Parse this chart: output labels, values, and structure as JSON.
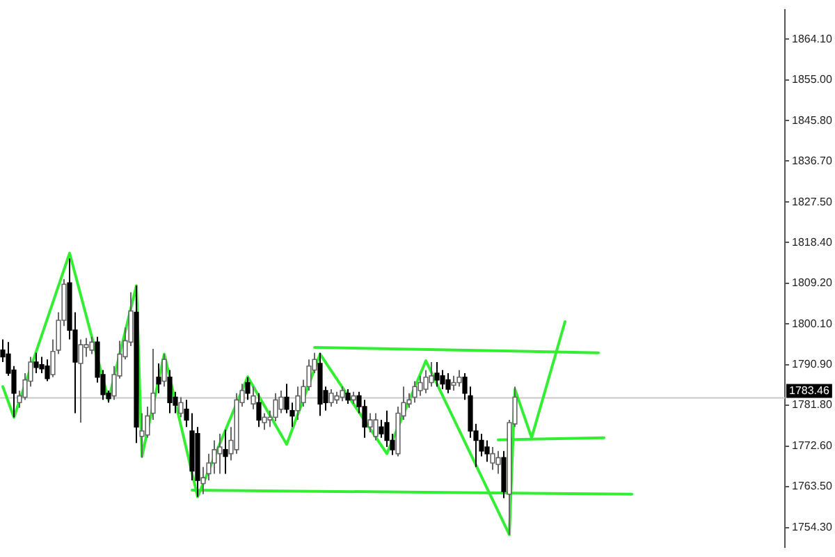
{
  "chart_data": {
    "type": "candlestick",
    "colors": [
      "#000000",
      "#000000",
      "#000000",
      "#ffffff",
      "#ffffff",
      "#ffffff",
      "#000000",
      "#000000",
      "#000000",
      "#ffffff",
      "#ffffff",
      "#ffffff",
      "#000000",
      "#000000",
      "#ffffff",
      "#ffffff",
      "#ffffff",
      "#000000",
      "#000000",
      "#000000",
      "#ffffff",
      "#ffffff",
      "#ffffff",
      "#ffffff",
      "#000000",
      "#ffffff",
      "#ffffff",
      "#ffffff",
      "#000000",
      "#ffffff",
      "#000000",
      "#000000",
      "#ffffff",
      "#000000",
      "#000000",
      "#000000",
      "#ffffff",
      "#ffffff",
      "#ffffff",
      "#ffffff",
      "#000000",
      "#ffffff",
      "#ffffff",
      "#ffffff",
      "#000000",
      "#ffffff",
      "#000000",
      "#ffffff",
      "#ffffff",
      "#ffffff",
      "#ffffff",
      "#000000",
      "#000000",
      "#ffffff",
      "#ffffff",
      "#ffffff",
      "#ffffff",
      "#000000",
      "#000000",
      "#ffffff",
      "#ffffff",
      "#ffffff",
      "#000000",
      "#ffffff",
      "#000000",
      "#000000",
      "#ffffff",
      "#ffffff",
      "#000000",
      "#000000",
      "#000000",
      "#ffffff",
      "#ffffff",
      "#ffffff",
      "#ffffff",
      "#ffffff",
      "#ffffff",
      "#ffffff",
      "#000000",
      "#000000",
      "#000000",
      "#ffffff",
      "#ffffff",
      "#000000",
      "#000000",
      "#000000",
      "#000000",
      "#000000",
      "#ffffff",
      "#ffffff",
      "#000000",
      "#ffffff",
      "#ffffff",
      null,
      null,
      null,
      null,
      null,
      null,
      null,
      null,
      null,
      null,
      null,
      null,
      null,
      null,
      null,
      null,
      null,
      null,
      null,
      null,
      null,
      null,
      null,
      null,
      null,
      null,
      null,
      null,
      null,
      null,
      null,
      null,
      null,
      null,
      null,
      null,
      null,
      null,
      null,
      null,
      null,
      null,
      null,
      null,
      null,
      null,
      null,
      null
    ],
    "categories": [
      null,
      null,
      null,
      null,
      null,
      null,
      null,
      null,
      null,
      null,
      null,
      null,
      null,
      null,
      null,
      null,
      null,
      null,
      null,
      null,
      null,
      null,
      null,
      null,
      null,
      null,
      null,
      null,
      null,
      null,
      null,
      null,
      null,
      null,
      null,
      null,
      null,
      null,
      null,
      null,
      null,
      null,
      null,
      null,
      null,
      null,
      null,
      null,
      null,
      null,
      null,
      null,
      null,
      null,
      null,
      null,
      null,
      null,
      null,
      null,
      null,
      null,
      null,
      null,
      null,
      null,
      null,
      null,
      null,
      null,
      null,
      null,
      null,
      null,
      null,
      null,
      null,
      null,
      null,
      null,
      null,
      null,
      null,
      null,
      null,
      null,
      null,
      null,
      null,
      null,
      null,
      null,
      null,
      null,
      null,
      null,
      null,
      null,
      null,
      null,
      null,
      null,
      null,
      null,
      null,
      null,
      null,
      null,
      null,
      null,
      null,
      null,
      null,
      null,
      null,
      null,
      null,
      null,
      null,
      null,
      null,
      null,
      null,
      null,
      null,
      null,
      null,
      null,
      null,
      null,
      null,
      null,
      null,
      null,
      null,
      null,
      null,
      null,
      null,
      null,
      null
    ],
    "series": [
      {
        "type": "line",
        "color": "#33ee33",
        "values": [
          1786.0,
          null,
          1779.1,
          null,
          null,
          null,
          null,
          null,
          null,
          null,
          null,
          null,
          1816.0,
          null,
          null,
          null,
          null,
          null,
          null,
          1783.0,
          null,
          null,
          null,
          null,
          1808.7,
          1770.3,
          null,
          null,
          null,
          1793.3,
          null,
          null,
          null,
          null,
          null,
          1761.2,
          null,
          null,
          null,
          null,
          null,
          null,
          null,
          null,
          1788.2,
          null,
          null,
          null,
          null,
          null,
          null,
          1773.0,
          null,
          null,
          null,
          null,
          null,
          1793.3,
          null,
          null,
          null,
          null,
          null,
          null,
          null,
          null,
          null,
          null,
          null,
          1770.9,
          null,
          null,
          null,
          null,
          null,
          null,
          1791.8,
          null,
          null,
          null,
          null,
          null,
          null,
          null,
          null,
          null,
          null,
          null,
          null,
          null,
          null,
          1752.7,
          1785.4,
          null,
          null,
          1774.5,
          null,
          null,
          null,
          null,
          null,
          1800.6,
          null,
          null,
          null,
          null,
          null,
          null,
          null,
          null,
          null,
          null,
          null,
          null,
          null,
          null,
          null,
          null,
          null,
          null,
          null,
          null,
          null,
          null,
          null,
          null,
          null,
          null,
          null,
          null,
          null,
          null,
          null,
          null,
          null,
          null,
          null,
          null,
          null,
          null,
          null
        ]
      },
      {
        "type": "line",
        "color": "#33ee33",
        "values": [
          null,
          null,
          null,
          null,
          null,
          null,
          null,
          null,
          null,
          null,
          null,
          null,
          null,
          null,
          null,
          null,
          null,
          null,
          null,
          null,
          null,
          null,
          null,
          null,
          null,
          null,
          null,
          null,
          null,
          null,
          null,
          null,
          null,
          null,
          null,
          null,
          null,
          null,
          null,
          null,
          null,
          null,
          null,
          null,
          null,
          null,
          null,
          null,
          null,
          null,
          null,
          null,
          null,
          null,
          null,
          null,
          1794.8,
          null,
          null,
          null,
          null,
          null,
          null,
          null,
          null,
          null,
          null,
          null,
          null,
          null,
          null,
          null,
          null,
          null,
          null,
          null,
          null,
          null,
          null,
          null,
          null,
          null,
          null,
          null,
          null,
          null,
          null,
          null,
          null,
          null,
          null,
          null,
          null,
          null,
          null,
          null,
          null,
          null,
          null,
          null,
          null,
          null,
          null,
          null,
          null,
          null,
          null,
          1793.6,
          null,
          null,
          null,
          null,
          null,
          null,
          null,
          null,
          null,
          null,
          null,
          null,
          null,
          null,
          null,
          null,
          null,
          null,
          null,
          null,
          null,
          null,
          null,
          null,
          null,
          null,
          null,
          null,
          null,
          null,
          null,
          null,
          null
        ]
      },
      {
        "type": "line",
        "color": "#33ee33",
        "values": [
          null,
          null,
          null,
          null,
          null,
          null,
          null,
          null,
          null,
          null,
          null,
          null,
          null,
          null,
          null,
          null,
          null,
          null,
          null,
          null,
          null,
          null,
          null,
          null,
          null,
          null,
          null,
          null,
          null,
          null,
          null,
          null,
          null,
          null,
          1762.7,
          null,
          null,
          null,
          null,
          null,
          null,
          null,
          null,
          null,
          null,
          null,
          null,
          null,
          null,
          null,
          null,
          null,
          null,
          null,
          null,
          null,
          null,
          null,
          null,
          null,
          null,
          null,
          null,
          null,
          null,
          null,
          null,
          null,
          null,
          null,
          null,
          null,
          null,
          null,
          null,
          null,
          null,
          null,
          null,
          null,
          null,
          null,
          null,
          null,
          null,
          null,
          null,
          null,
          null,
          null,
          null,
          null,
          null,
          null,
          null,
          null,
          null,
          null,
          null,
          null,
          null,
          null,
          null,
          null,
          null,
          null,
          null,
          null,
          null,
          null,
          null,
          null,
          null,
          1761.8,
          null,
          null,
          null,
          null,
          null,
          null,
          null,
          null,
          null,
          null,
          null,
          null,
          null,
          null,
          null,
          null,
          null,
          null,
          null,
          null,
          null,
          null,
          null,
          null,
          null,
          null,
          null
        ]
      },
      {
        "type": "line",
        "color": "#33ee33",
        "values": [
          null,
          null,
          null,
          null,
          null,
          null,
          null,
          null,
          null,
          null,
          null,
          null,
          null,
          null,
          null,
          null,
          null,
          null,
          null,
          null,
          null,
          null,
          null,
          null,
          null,
          null,
          null,
          null,
          null,
          null,
          null,
          null,
          null,
          null,
          null,
          null,
          null,
          null,
          null,
          null,
          null,
          null,
          null,
          null,
          null,
          null,
          null,
          null,
          null,
          null,
          null,
          null,
          null,
          null,
          null,
          null,
          null,
          null,
          null,
          null,
          null,
          null,
          null,
          null,
          null,
          null,
          null,
          null,
          null,
          null,
          null,
          null,
          null,
          null,
          null,
          null,
          null,
          null,
          null,
          null,
          null,
          null,
          null,
          null,
          null,
          null,
          null,
          null,
          null,
          1774.0,
          null,
          null,
          null,
          null,
          null,
          null,
          null,
          null,
          null,
          null,
          null,
          null,
          null,
          null,
          null,
          null,
          null,
          null,
          1774.5,
          null,
          null,
          null,
          null,
          null,
          null,
          null,
          null,
          null,
          null,
          null,
          null,
          null,
          null,
          null,
          null,
          null,
          null,
          null,
          null,
          null,
          null,
          null,
          null,
          null,
          null,
          null,
          null,
          null,
          null,
          null,
          null
        ]
      }
    ],
    "ohlc": [
      [
        1794.2,
        1796.6,
        1791.5,
        1792.7
      ],
      [
        1793.3,
        1796.0,
        1788.4,
        1789.0
      ],
      [
        1789.7,
        1790.6,
        1779.1,
        1784.5
      ],
      [
        1782.4,
        1785.1,
        1781.2,
        1783.9
      ],
      [
        1783.6,
        1789.0,
        1783.0,
        1787.5
      ],
      [
        1787.2,
        1792.7,
        1786.0,
        1791.5
      ],
      [
        1791.5,
        1793.6,
        1789.0,
        1790.3
      ],
      [
        1790.9,
        1792.7,
        1789.0,
        1790.0
      ],
      [
        1790.6,
        1792.1,
        1787.2,
        1787.8
      ],
      [
        1788.7,
        1796.6,
        1788.1,
        1793.9
      ],
      [
        1794.2,
        1802.7,
        1793.3,
        1800.9
      ],
      [
        1800.9,
        1810.2,
        1799.6,
        1809.0
      ],
      [
        1809.3,
        1814.8,
        1796.6,
        1798.7
      ],
      [
        1798.7,
        1802.7,
        1780.0,
        1791.5
      ],
      [
        1791.2,
        1796.6,
        1777.9,
        1795.4
      ],
      [
        1794.8,
        1796.9,
        1792.7,
        1795.4
      ],
      [
        1794.2,
        1797.2,
        1793.3,
        1796.0
      ],
      [
        1796.0,
        1797.2,
        1786.9,
        1788.1
      ],
      [
        1788.7,
        1789.7,
        1783.0,
        1784.2
      ],
      [
        1784.5,
        1785.1,
        1782.4,
        1783.3
      ],
      [
        1783.9,
        1790.6,
        1783.0,
        1788.7
      ],
      [
        1788.4,
        1796.3,
        1787.8,
        1793.3
      ],
      [
        1792.7,
        1799.3,
        1792.1,
        1796.3
      ],
      [
        1796.0,
        1807.2,
        1795.1,
        1803.0
      ],
      [
        1802.7,
        1808.7,
        1773.3,
        1776.9
      ],
      [
        1774.8,
        1780.0,
        1770.0,
        1776.0
      ],
      [
        1775.1,
        1781.5,
        1774.5,
        1779.4
      ],
      [
        1780.0,
        1794.5,
        1778.5,
        1784.5
      ],
      [
        1788.1,
        1791.2,
        1784.5,
        1786.6
      ],
      [
        1787.2,
        1793.3,
        1786.0,
        1792.1
      ],
      [
        1788.1,
        1789.7,
        1780.0,
        1782.4
      ],
      [
        1783.6,
        1784.8,
        1780.0,
        1781.8
      ],
      [
        1780.0,
        1783.6,
        1779.1,
        1782.4
      ],
      [
        1780.9,
        1783.0,
        1776.9,
        1778.5
      ],
      [
        1776.0,
        1780.0,
        1764.9,
        1767.0
      ],
      [
        1775.4,
        1776.9,
        1761.2,
        1764.9
      ],
      [
        1764.2,
        1767.9,
        1761.8,
        1765.5
      ],
      [
        1766.4,
        1770.9,
        1764.9,
        1768.8
      ],
      [
        1768.8,
        1773.9,
        1766.4,
        1771.8
      ],
      [
        1770.9,
        1775.4,
        1766.4,
        1772.4
      ],
      [
        1771.8,
        1776.3,
        1766.4,
        1770.3
      ],
      [
        1770.9,
        1776.9,
        1769.4,
        1773.9
      ],
      [
        1771.8,
        1784.5,
        1770.9,
        1783.0
      ],
      [
        1782.4,
        1786.6,
        1781.5,
        1785.1
      ],
      [
        1786.9,
        1788.1,
        1783.0,
        1784.5
      ],
      [
        1782.1,
        1786.0,
        1780.9,
        1783.9
      ],
      [
        1782.4,
        1784.5,
        1776.9,
        1778.5
      ],
      [
        1777.9,
        1780.0,
        1776.3,
        1779.1
      ],
      [
        1778.5,
        1780.6,
        1776.9,
        1779.1
      ],
      [
        1779.1,
        1784.5,
        1778.2,
        1783.0
      ],
      [
        1780.9,
        1785.1,
        1780.0,
        1783.6
      ],
      [
        1783.6,
        1786.6,
        1780.0,
        1780.9
      ],
      [
        1780.6,
        1782.4,
        1776.9,
        1779.4
      ],
      [
        1780.6,
        1786.0,
        1778.5,
        1783.9
      ],
      [
        1782.4,
        1787.5,
        1781.5,
        1786.0
      ],
      [
        1786.0,
        1792.1,
        1785.1,
        1790.6
      ],
      [
        1789.7,
        1793.6,
        1789.0,
        1792.1
      ],
      [
        1791.2,
        1793.6,
        1779.4,
        1782.1
      ],
      [
        1785.1,
        1786.0,
        1780.6,
        1782.4
      ],
      [
        1782.4,
        1785.4,
        1781.5,
        1784.5
      ],
      [
        1783.0,
        1784.8,
        1782.1,
        1783.9
      ],
      [
        1783.6,
        1786.0,
        1782.7,
        1785.1
      ],
      [
        1784.5,
        1785.4,
        1782.1,
        1783.0
      ],
      [
        1783.0,
        1784.8,
        1782.1,
        1783.9
      ],
      [
        1783.9,
        1784.8,
        1780.0,
        1781.5
      ],
      [
        1781.5,
        1783.0,
        1774.5,
        1776.9
      ],
      [
        1776.9,
        1780.0,
        1775.7,
        1778.5
      ],
      [
        1774.8,
        1780.0,
        1773.9,
        1778.5
      ],
      [
        1776.9,
        1778.5,
        1774.5,
        1775.4
      ],
      [
        1777.9,
        1780.6,
        1772.4,
        1773.9
      ],
      [
        1773.9,
        1775.4,
        1770.6,
        1771.8
      ],
      [
        1770.9,
        1781.5,
        1770.3,
        1780.0
      ],
      [
        1779.4,
        1786.0,
        1778.5,
        1782.4
      ],
      [
        1782.1,
        1784.5,
        1781.2,
        1783.0
      ],
      [
        1783.6,
        1787.2,
        1782.4,
        1786.0
      ],
      [
        1785.1,
        1788.4,
        1783.9,
        1786.9
      ],
      [
        1785.4,
        1789.7,
        1784.5,
        1788.1
      ],
      [
        1786.9,
        1791.5,
        1786.0,
        1788.4
      ],
      [
        1789.0,
        1791.5,
        1786.0,
        1787.5
      ],
      [
        1788.4,
        1789.7,
        1785.4,
        1786.6
      ],
      [
        1787.5,
        1789.0,
        1784.5,
        1785.4
      ],
      [
        1786.3,
        1788.4,
        1785.1,
        1786.9
      ],
      [
        1786.9,
        1789.7,
        1786.0,
        1788.1
      ],
      [
        1788.1,
        1789.0,
        1783.0,
        1784.5
      ],
      [
        1783.9,
        1786.0,
        1774.5,
        1776.0
      ],
      [
        1776.0,
        1777.6,
        1767.9,
        1773.9
      ],
      [
        1773.9,
        1775.4,
        1770.3,
        1771.5
      ],
      [
        1772.4,
        1773.9,
        1769.1,
        1770.9
      ],
      [
        1768.8,
        1772.4,
        1767.3,
        1770.9
      ],
      [
        1768.5,
        1771.5,
        1766.4,
        1770.0
      ],
      [
        1770.0,
        1771.5,
        1760.9,
        1762.4
      ],
      [
        1761.8,
        1778.5,
        1752.7,
        1777.9
      ],
      [
        1777.6,
        1786.0,
        1776.9,
        1783.6
      ],
      null,
      null,
      null,
      null,
      null,
      null,
      null,
      null,
      null,
      null,
      null,
      null,
      null,
      null,
      null,
      null,
      null,
      null,
      null,
      null,
      null,
      null,
      null,
      null,
      null,
      null,
      null,
      null,
      null,
      null,
      null,
      null,
      null,
      null,
      null,
      null,
      null,
      null,
      null,
      null,
      null,
      null,
      null,
      null,
      null,
      null,
      null,
      null
    ],
    "ylim": [
      1749.8,
      1870.8
    ],
    "yticks": [
      {
        "value": 1754.3,
        "label": "1754.30"
      },
      {
        "value": 1763.5,
        "label": "1763.50"
      },
      {
        "value": 1772.6,
        "label": "1772.60"
      },
      {
        "value": 1781.8,
        "label": "1781.80"
      },
      {
        "value": 1790.9,
        "label": "1790.90"
      },
      {
        "value": 1800.1,
        "label": "1800.10"
      },
      {
        "value": 1809.2,
        "label": "1809.20"
      },
      {
        "value": 1818.4,
        "label": "1818.40"
      },
      {
        "value": 1827.5,
        "label": "1827.50"
      },
      {
        "value": 1836.7,
        "label": "1836.70"
      },
      {
        "value": 1845.8,
        "label": "1845.80"
      },
      {
        "value": 1855,
        "label": "1855.00"
      },
      {
        "value": 1864.1,
        "label": "1864.10"
      }
    ],
    "ref_lines": [
      {
        "axis": "y",
        "value": 1783.46,
        "label": "1783.46",
        "color": "#c8c8c8"
      }
    ],
    "tick_labels": "y",
    "legend": false,
    "grid": false
  }
}
